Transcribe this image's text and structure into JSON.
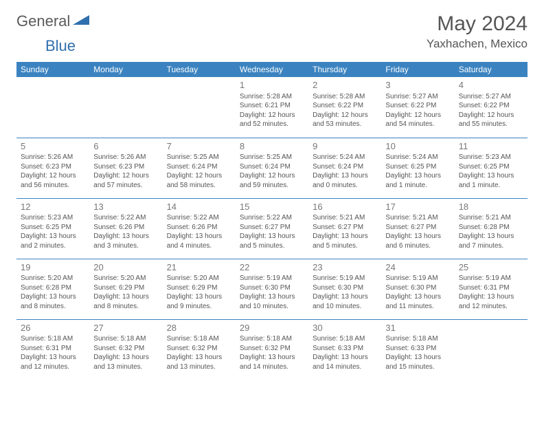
{
  "logo": {
    "general": "General",
    "blue": "Blue"
  },
  "title": "May 2024",
  "location": "Yaxhachen, Mexico",
  "colors": {
    "header_bg": "#3b83c0",
    "header_text": "#ffffff",
    "border": "#3b83c0",
    "text": "#555555",
    "daynum": "#777777",
    "logo_gray": "#5a5a5a",
    "logo_blue": "#2f6fad"
  },
  "weekdays": [
    "Sunday",
    "Monday",
    "Tuesday",
    "Wednesday",
    "Thursday",
    "Friday",
    "Saturday"
  ],
  "weeks": [
    [
      null,
      null,
      null,
      {
        "n": "1",
        "sr": "Sunrise: 5:28 AM",
        "ss": "Sunset: 6:21 PM",
        "dl": "Daylight: 12 hours and 52 minutes."
      },
      {
        "n": "2",
        "sr": "Sunrise: 5:28 AM",
        "ss": "Sunset: 6:22 PM",
        "dl": "Daylight: 12 hours and 53 minutes."
      },
      {
        "n": "3",
        "sr": "Sunrise: 5:27 AM",
        "ss": "Sunset: 6:22 PM",
        "dl": "Daylight: 12 hours and 54 minutes."
      },
      {
        "n": "4",
        "sr": "Sunrise: 5:27 AM",
        "ss": "Sunset: 6:22 PM",
        "dl": "Daylight: 12 hours and 55 minutes."
      }
    ],
    [
      {
        "n": "5",
        "sr": "Sunrise: 5:26 AM",
        "ss": "Sunset: 6:23 PM",
        "dl": "Daylight: 12 hours and 56 minutes."
      },
      {
        "n": "6",
        "sr": "Sunrise: 5:26 AM",
        "ss": "Sunset: 6:23 PM",
        "dl": "Daylight: 12 hours and 57 minutes."
      },
      {
        "n": "7",
        "sr": "Sunrise: 5:25 AM",
        "ss": "Sunset: 6:24 PM",
        "dl": "Daylight: 12 hours and 58 minutes."
      },
      {
        "n": "8",
        "sr": "Sunrise: 5:25 AM",
        "ss": "Sunset: 6:24 PM",
        "dl": "Daylight: 12 hours and 59 minutes."
      },
      {
        "n": "9",
        "sr": "Sunrise: 5:24 AM",
        "ss": "Sunset: 6:24 PM",
        "dl": "Daylight: 13 hours and 0 minutes."
      },
      {
        "n": "10",
        "sr": "Sunrise: 5:24 AM",
        "ss": "Sunset: 6:25 PM",
        "dl": "Daylight: 13 hours and 1 minute."
      },
      {
        "n": "11",
        "sr": "Sunrise: 5:23 AM",
        "ss": "Sunset: 6:25 PM",
        "dl": "Daylight: 13 hours and 1 minute."
      }
    ],
    [
      {
        "n": "12",
        "sr": "Sunrise: 5:23 AM",
        "ss": "Sunset: 6:25 PM",
        "dl": "Daylight: 13 hours and 2 minutes."
      },
      {
        "n": "13",
        "sr": "Sunrise: 5:22 AM",
        "ss": "Sunset: 6:26 PM",
        "dl": "Daylight: 13 hours and 3 minutes."
      },
      {
        "n": "14",
        "sr": "Sunrise: 5:22 AM",
        "ss": "Sunset: 6:26 PM",
        "dl": "Daylight: 13 hours and 4 minutes."
      },
      {
        "n": "15",
        "sr": "Sunrise: 5:22 AM",
        "ss": "Sunset: 6:27 PM",
        "dl": "Daylight: 13 hours and 5 minutes."
      },
      {
        "n": "16",
        "sr": "Sunrise: 5:21 AM",
        "ss": "Sunset: 6:27 PM",
        "dl": "Daylight: 13 hours and 5 minutes."
      },
      {
        "n": "17",
        "sr": "Sunrise: 5:21 AM",
        "ss": "Sunset: 6:27 PM",
        "dl": "Daylight: 13 hours and 6 minutes."
      },
      {
        "n": "18",
        "sr": "Sunrise: 5:21 AM",
        "ss": "Sunset: 6:28 PM",
        "dl": "Daylight: 13 hours and 7 minutes."
      }
    ],
    [
      {
        "n": "19",
        "sr": "Sunrise: 5:20 AM",
        "ss": "Sunset: 6:28 PM",
        "dl": "Daylight: 13 hours and 8 minutes."
      },
      {
        "n": "20",
        "sr": "Sunrise: 5:20 AM",
        "ss": "Sunset: 6:29 PM",
        "dl": "Daylight: 13 hours and 8 minutes."
      },
      {
        "n": "21",
        "sr": "Sunrise: 5:20 AM",
        "ss": "Sunset: 6:29 PM",
        "dl": "Daylight: 13 hours and 9 minutes."
      },
      {
        "n": "22",
        "sr": "Sunrise: 5:19 AM",
        "ss": "Sunset: 6:30 PM",
        "dl": "Daylight: 13 hours and 10 minutes."
      },
      {
        "n": "23",
        "sr": "Sunrise: 5:19 AM",
        "ss": "Sunset: 6:30 PM",
        "dl": "Daylight: 13 hours and 10 minutes."
      },
      {
        "n": "24",
        "sr": "Sunrise: 5:19 AM",
        "ss": "Sunset: 6:30 PM",
        "dl": "Daylight: 13 hours and 11 minutes."
      },
      {
        "n": "25",
        "sr": "Sunrise: 5:19 AM",
        "ss": "Sunset: 6:31 PM",
        "dl": "Daylight: 13 hours and 12 minutes."
      }
    ],
    [
      {
        "n": "26",
        "sr": "Sunrise: 5:18 AM",
        "ss": "Sunset: 6:31 PM",
        "dl": "Daylight: 13 hours and 12 minutes."
      },
      {
        "n": "27",
        "sr": "Sunrise: 5:18 AM",
        "ss": "Sunset: 6:32 PM",
        "dl": "Daylight: 13 hours and 13 minutes."
      },
      {
        "n": "28",
        "sr": "Sunrise: 5:18 AM",
        "ss": "Sunset: 6:32 PM",
        "dl": "Daylight: 13 hours and 13 minutes."
      },
      {
        "n": "29",
        "sr": "Sunrise: 5:18 AM",
        "ss": "Sunset: 6:32 PM",
        "dl": "Daylight: 13 hours and 14 minutes."
      },
      {
        "n": "30",
        "sr": "Sunrise: 5:18 AM",
        "ss": "Sunset: 6:33 PM",
        "dl": "Daylight: 13 hours and 14 minutes."
      },
      {
        "n": "31",
        "sr": "Sunrise: 5:18 AM",
        "ss": "Sunset: 6:33 PM",
        "dl": "Daylight: 13 hours and 15 minutes."
      },
      null
    ]
  ]
}
